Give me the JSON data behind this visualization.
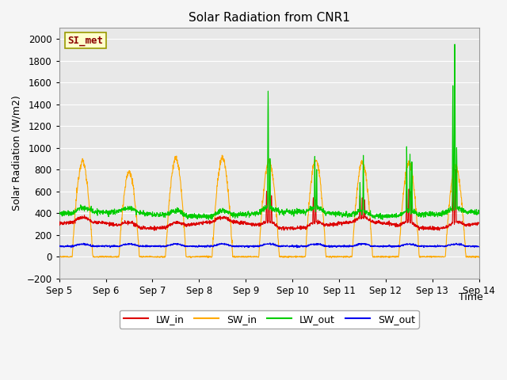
{
  "title": "Solar Radiation from CNR1",
  "xlabel": "Time",
  "ylabel": "Solar Radiation (W/m2)",
  "ylim": [
    -200,
    2100
  ],
  "yticks": [
    -200,
    0,
    200,
    400,
    600,
    800,
    1000,
    1200,
    1400,
    1600,
    1800,
    2000
  ],
  "xtick_labels": [
    "Sep 5",
    "Sep 6",
    "Sep 7",
    "Sep 8",
    "Sep 9",
    "Sep 10",
    "Sep 11",
    "Sep 12",
    "Sep 13",
    "Sep 14"
  ],
  "annotation_text": "SI_met",
  "colors": {
    "LW_in": "#dd0000",
    "SW_in": "#ffaa00",
    "LW_out": "#00cc00",
    "SW_out": "#0000ee"
  },
  "plot_bg": "#e8e8e8",
  "fig_bg": "#f5f5f5",
  "grid_color": "#ffffff",
  "n_points": 2016,
  "days": 9
}
